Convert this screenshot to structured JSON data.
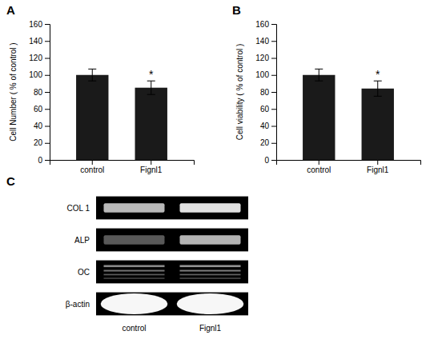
{
  "chart_data": [
    {
      "type": "bar",
      "title": "A",
      "categories": [
        "control",
        "Fignl1"
      ],
      "values": [
        100,
        85
      ],
      "errors": [
        7,
        8
      ],
      "color": "#1a1a1a",
      "ylabel": "Cell Number ( % of control )",
      "ylim": [
        0,
        160
      ],
      "yticks": [
        0,
        20,
        40,
        60,
        80,
        100,
        120,
        140,
        160
      ],
      "annotations": [
        {
          "text": "*",
          "x": "Fignl1"
        }
      ]
    },
    {
      "type": "bar",
      "title": "B",
      "categories": [
        "control",
        "Fignl1"
      ],
      "values": [
        100,
        84
      ],
      "errors": [
        7,
        9
      ],
      "color": "#1a1a1a",
      "ylabel": "Cell viability ( % of control )",
      "ylim": [
        0,
        160
      ],
      "yticks": [
        0,
        20,
        40,
        60,
        80,
        100,
        120,
        140,
        160
      ],
      "annotations": [
        {
          "text": "*",
          "x": "Fignl1"
        }
      ]
    },
    {
      "type": "gel",
      "title": "C",
      "categories": [
        "control",
        "Fignl1"
      ],
      "series": [
        {
          "name": "COL 1",
          "values": [
            0.72,
            0.88
          ],
          "marker": "band"
        },
        {
          "name": "ALP",
          "values": [
            0.35,
            0.7
          ],
          "marker": "band"
        },
        {
          "name": "OC",
          "values": [
            0.6,
            0.65
          ],
          "marker": "multi"
        },
        {
          "name": "β-actin",
          "values": [
            0.97,
            0.97
          ],
          "marker": "oval"
        }
      ]
    }
  ]
}
